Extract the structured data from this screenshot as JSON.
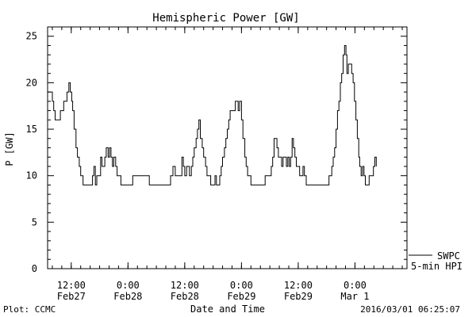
{
  "title": "Hemispheric Power [GW]",
  "ylabel": "P [GW]",
  "xlabel": "Date and Time",
  "footer": {
    "left": "Plot: CCMC",
    "right": "2016/03/01 06:25:07"
  },
  "legend": {
    "line1": "SWPC",
    "line2": "5-min HPI"
  },
  "chart_data": {
    "type": "line",
    "title": "Hemispheric Power [GW]",
    "xlabel": "Date and Time",
    "ylabel": "P [GW]",
    "ylim": [
      0,
      26
    ],
    "xlim_hours": [
      0,
      76
    ],
    "yticks": [
      0,
      5,
      10,
      15,
      20,
      25
    ],
    "xticks": [
      {
        "hour": 5,
        "top": "12:00",
        "bottom": "Feb27"
      },
      {
        "hour": 17,
        "top": "0:00",
        "bottom": "Feb28"
      },
      {
        "hour": 29,
        "top": "12:00",
        "bottom": "Feb28"
      },
      {
        "hour": 41,
        "top": "0:00",
        "bottom": "Feb29"
      },
      {
        "hour": 53,
        "top": "12:00",
        "bottom": "Feb29"
      },
      {
        "hour": 65,
        "top": "0:00",
        "bottom": "Mar 1"
      }
    ],
    "grid": false,
    "legend_position": "bottom-right, outside plot",
    "series": [
      {
        "name": "SWPC 5-min HPI",
        "points": [
          [
            0.0,
            19
          ],
          [
            0.5,
            19
          ],
          [
            1.0,
            18
          ],
          [
            1.3,
            17
          ],
          [
            1.6,
            16
          ],
          [
            2.0,
            16
          ],
          [
            2.4,
            16
          ],
          [
            2.7,
            17
          ],
          [
            3.1,
            17
          ],
          [
            3.4,
            18
          ],
          [
            3.8,
            18
          ],
          [
            4.1,
            19
          ],
          [
            4.5,
            20
          ],
          [
            4.8,
            19
          ],
          [
            5.1,
            18
          ],
          [
            5.3,
            17
          ],
          [
            5.6,
            15
          ],
          [
            6.0,
            13
          ],
          [
            6.3,
            12
          ],
          [
            6.7,
            11
          ],
          [
            7.0,
            10
          ],
          [
            7.5,
            9
          ],
          [
            8.0,
            9
          ],
          [
            8.5,
            9
          ],
          [
            9.0,
            9
          ],
          [
            9.5,
            10
          ],
          [
            9.8,
            11
          ],
          [
            10.1,
            9
          ],
          [
            10.4,
            10
          ],
          [
            10.8,
            10
          ],
          [
            11.2,
            12
          ],
          [
            11.5,
            11
          ],
          [
            11.8,
            11
          ],
          [
            12.1,
            12
          ],
          [
            12.4,
            13
          ],
          [
            12.8,
            12
          ],
          [
            13.1,
            13
          ],
          [
            13.4,
            12
          ],
          [
            13.7,
            11
          ],
          [
            14.0,
            12
          ],
          [
            14.4,
            11
          ],
          [
            14.7,
            10
          ],
          [
            15.1,
            10
          ],
          [
            15.5,
            9
          ],
          [
            16.0,
            9
          ],
          [
            16.5,
            9
          ],
          [
            17.0,
            9
          ],
          [
            17.5,
            9
          ],
          [
            18.0,
            10
          ],
          [
            19.0,
            10
          ],
          [
            20.0,
            10
          ],
          [
            21.0,
            10
          ],
          [
            21.5,
            9
          ],
          [
            22.5,
            9
          ],
          [
            23.5,
            9
          ],
          [
            24.5,
            9
          ],
          [
            25.5,
            9
          ],
          [
            26.0,
            10
          ],
          [
            26.5,
            11
          ],
          [
            27.0,
            10
          ],
          [
            27.5,
            10
          ],
          [
            28.0,
            10
          ],
          [
            28.4,
            12
          ],
          [
            28.7,
            11
          ],
          [
            29.0,
            10
          ],
          [
            29.4,
            11
          ],
          [
            29.7,
            11
          ],
          [
            30.0,
            10
          ],
          [
            30.4,
            11
          ],
          [
            30.7,
            12
          ],
          [
            31.0,
            13
          ],
          [
            31.4,
            14
          ],
          [
            31.7,
            15
          ],
          [
            32.0,
            16
          ],
          [
            32.3,
            14
          ],
          [
            32.7,
            13
          ],
          [
            33.0,
            12
          ],
          [
            33.4,
            11
          ],
          [
            33.7,
            10
          ],
          [
            34.0,
            10
          ],
          [
            34.5,
            9
          ],
          [
            35.0,
            9
          ],
          [
            35.4,
            10
          ],
          [
            35.7,
            9
          ],
          [
            36.0,
            9
          ],
          [
            36.4,
            10
          ],
          [
            36.7,
            11
          ],
          [
            37.0,
            12
          ],
          [
            37.4,
            13
          ],
          [
            37.7,
            14
          ],
          [
            38.0,
            15
          ],
          [
            38.3,
            16
          ],
          [
            38.6,
            17
          ],
          [
            39.0,
            17
          ],
          [
            39.4,
            17
          ],
          [
            39.7,
            18
          ],
          [
            40.0,
            18
          ],
          [
            40.3,
            17
          ],
          [
            40.6,
            18
          ],
          [
            41.0,
            16
          ],
          [
            41.3,
            14
          ],
          [
            41.7,
            12
          ],
          [
            42.0,
            11
          ],
          [
            42.3,
            10
          ],
          [
            42.7,
            10
          ],
          [
            43.0,
            9
          ],
          [
            43.5,
            9
          ],
          [
            44.0,
            9
          ],
          [
            44.5,
            9
          ],
          [
            45.0,
            9
          ],
          [
            45.5,
            9
          ],
          [
            46.0,
            10
          ],
          [
            46.5,
            10
          ],
          [
            47.0,
            10
          ],
          [
            47.3,
            11
          ],
          [
            47.6,
            12
          ],
          [
            47.9,
            14
          ],
          [
            48.2,
            14
          ],
          [
            48.5,
            13
          ],
          [
            48.8,
            12
          ],
          [
            49.2,
            12
          ],
          [
            49.5,
            11
          ],
          [
            49.8,
            12
          ],
          [
            50.1,
            12
          ],
          [
            50.5,
            11
          ],
          [
            50.8,
            12
          ],
          [
            51.1,
            11
          ],
          [
            51.4,
            12
          ],
          [
            51.7,
            14
          ],
          [
            52.0,
            13
          ],
          [
            52.3,
            12
          ],
          [
            52.6,
            11
          ],
          [
            53.0,
            11
          ],
          [
            53.3,
            10
          ],
          [
            53.6,
            10
          ],
          [
            54.0,
            11
          ],
          [
            54.3,
            10
          ],
          [
            54.7,
            9
          ],
          [
            55.2,
            9
          ],
          [
            55.7,
            9
          ],
          [
            56.2,
            9
          ],
          [
            56.7,
            9
          ],
          [
            57.2,
            9
          ],
          [
            57.7,
            9
          ],
          [
            58.2,
            9
          ],
          [
            58.7,
            9
          ],
          [
            59.2,
            9
          ],
          [
            59.5,
            10
          ],
          [
            59.8,
            10
          ],
          [
            60.1,
            11
          ],
          [
            60.4,
            12
          ],
          [
            60.7,
            13
          ],
          [
            61.0,
            15
          ],
          [
            61.3,
            17
          ],
          [
            61.6,
            18
          ],
          [
            61.9,
            20
          ],
          [
            62.2,
            21
          ],
          [
            62.5,
            23
          ],
          [
            62.8,
            24
          ],
          [
            63.1,
            23
          ],
          [
            63.3,
            21
          ],
          [
            63.6,
            22
          ],
          [
            64.0,
            22
          ],
          [
            64.3,
            21
          ],
          [
            64.6,
            20
          ],
          [
            64.9,
            18
          ],
          [
            65.2,
            16
          ],
          [
            65.5,
            14
          ],
          [
            65.8,
            12
          ],
          [
            66.0,
            11
          ],
          [
            66.3,
            10
          ],
          [
            66.6,
            11
          ],
          [
            66.9,
            10
          ],
          [
            67.2,
            9
          ],
          [
            67.6,
            9
          ],
          [
            68.0,
            10
          ],
          [
            68.5,
            10
          ],
          [
            68.9,
            11
          ],
          [
            69.2,
            12
          ],
          [
            69.5,
            11
          ]
        ]
      }
    ]
  }
}
